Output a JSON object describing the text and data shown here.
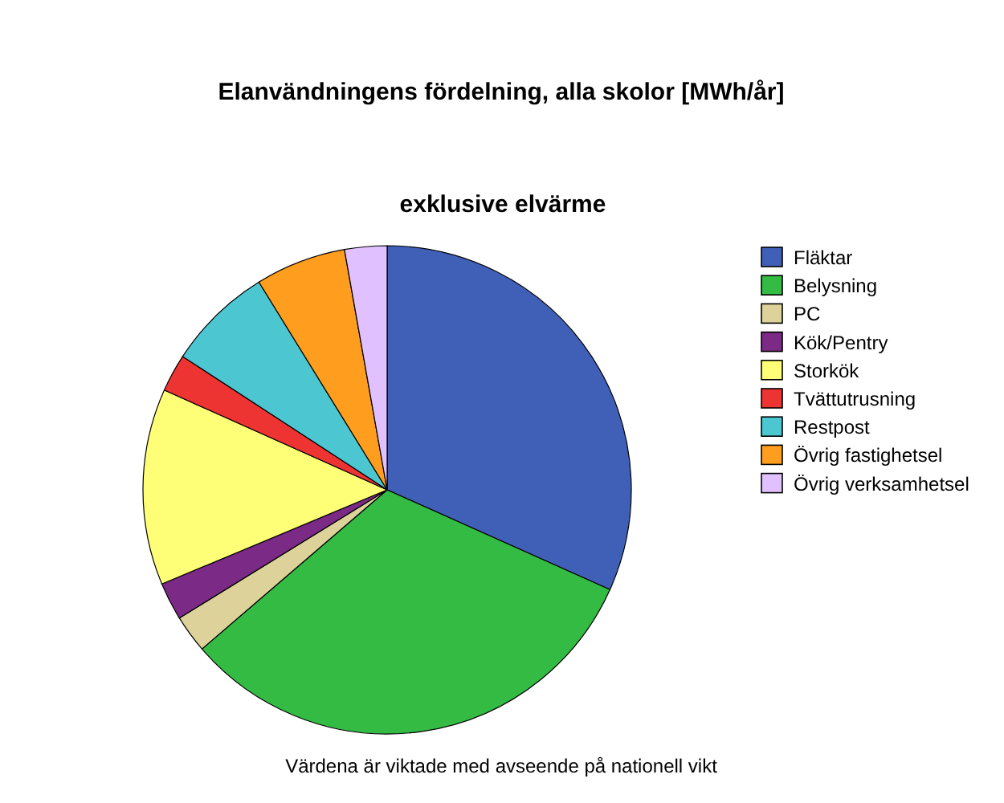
{
  "chart_data": {
    "type": "pie",
    "title": "Elanvändningens fördelning, alla skolor [MWh/år]",
    "subtitle": "exklusive elvärme",
    "annotations": [
      "Värdena är viktade med avseende på nationell vikt"
    ],
    "categories": [
      "Fläktar",
      "Belysning",
      "PC",
      "Kök/Pentry",
      "Storkök",
      "Tvättutrusning",
      "Restpost",
      "Övrig fastighetsel",
      "Övrig verksamhetsel"
    ],
    "values": [
      31.7,
      32,
      2.5,
      2.5,
      13,
      2.5,
      7,
      6,
      2.8
    ],
    "colors": [
      "#4060b8",
      "#33bb44",
      "#dcd29a",
      "#7b2a85",
      "#ffff77",
      "#ee3333",
      "#4cc6d0",
      "#ff9e1e",
      "#e0c0ff"
    ],
    "legend": "right"
  }
}
